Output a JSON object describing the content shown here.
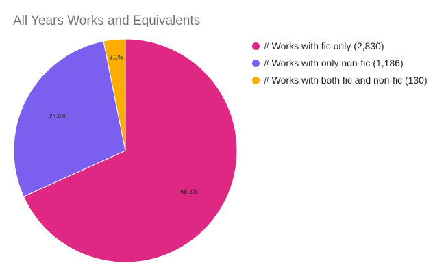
{
  "chart_data": {
    "type": "pie",
    "title": "All Years Works and Equivalents",
    "legend_position": "right",
    "slices": [
      {
        "label": "# Works with fic only (2,830)",
        "value": 2830,
        "percent_label": "68.3%",
        "color": "#de2883"
      },
      {
        "label": "# Works with only non-fic (1,186)",
        "value": 1186,
        "percent_label": "28.6%",
        "color": "#7b60ef"
      },
      {
        "label": "# Works with both fic and non-fic (130)",
        "value": 130,
        "percent_label": "3.1%",
        "color": "#fcad00"
      }
    ]
  }
}
